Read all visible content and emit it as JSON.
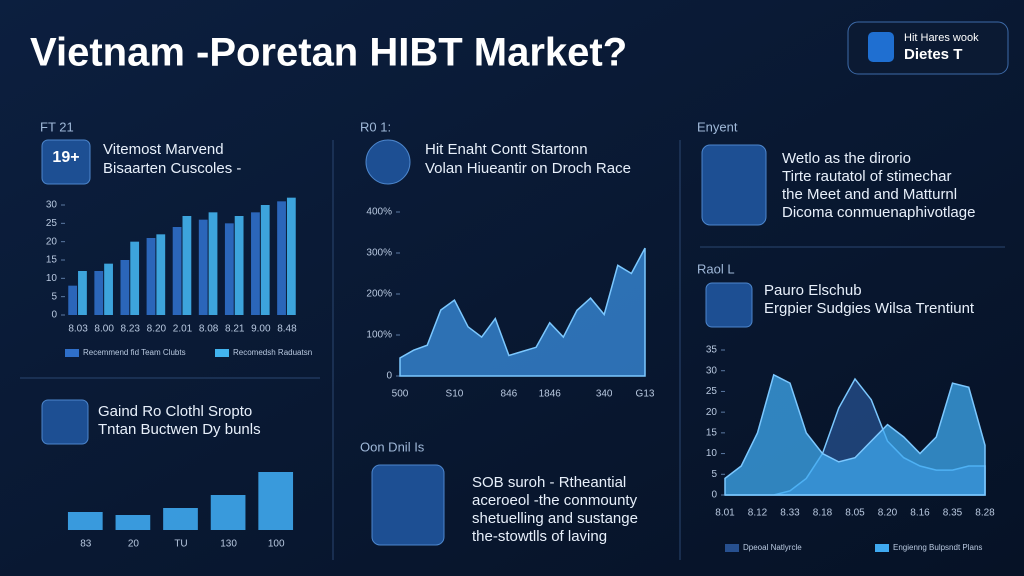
{
  "header": {
    "title": "Vietnam -Poretan HIBT Market?",
    "logo_line1": "Hit Hares wook",
    "logo_line2": "Dietes T"
  },
  "panels": [
    {
      "tag": "FT 21",
      "icon": "19+",
      "title": "Vitemost Marvend",
      "subtitle": "Bisaarten Cuscoles -"
    },
    {
      "tag": "R0 1:",
      "title": "Hit Enaht Contt Startonn",
      "subtitle": "Volan Hiueantir on Droch Race"
    },
    {
      "tag": "Enyent",
      "lines": [
        "Wetlo as the dirorio",
        "Tirte rautatol of stimechar",
        "the Meet and and Matturnl",
        "Dicoma conmuenaphivotlage"
      ]
    },
    {
      "tag": "Raol L",
      "title": "Pauro Elschub",
      "subtitle": "Ergpier Sudgies Wilsa Trentiunt"
    },
    {
      "title": "Gaind Ro Clothl Sropto",
      "subtitle": "Tntan Buctwen Dy bunls"
    },
    {
      "tag": "Oon Dnil Is",
      "lines": [
        "SOB suroh - Rtheantial",
        "aceroeol -the conmounty",
        "shetuelling and sustange",
        "the-stowtlls of laving"
      ]
    }
  ],
  "chart_data": [
    {
      "type": "bar",
      "categories": [
        "8.03",
        "8.00",
        "8.23",
        "8.20",
        "2.01",
        "8.08",
        "8.21",
        "9.00",
        "8.48"
      ],
      "series": [
        {
          "name": "Recemmend fid Team Clubts",
          "color": "#2f6fc9",
          "values": [
            8,
            12,
            15,
            21,
            24,
            26,
            25,
            28,
            31
          ]
        },
        {
          "name": "Recomedsh Raduatsn",
          "color": "#42b4ee",
          "values": [
            12,
            14,
            20,
            22,
            27,
            28,
            27,
            30,
            32
          ]
        }
      ],
      "ylim": [
        0,
        30
      ],
      "yticks": [
        0,
        5,
        10,
        15,
        20,
        25,
        30
      ]
    },
    {
      "type": "area",
      "color": "#3a8fe0",
      "categories": [
        "500",
        null,
        null,
        null,
        "S10",
        null,
        null,
        null,
        "846",
        null,
        null,
        "1846",
        null,
        null,
        null,
        "340",
        null,
        null,
        "G13"
      ],
      "values": [
        44,
        63,
        75,
        161,
        185,
        120,
        95,
        140,
        50,
        60,
        70,
        130,
        95,
        160,
        190,
        150,
        270,
        250,
        312
      ],
      "ylim": [
        0,
        400
      ],
      "yticks": [
        0,
        {
          "value": 100,
          "label": "100%"
        },
        {
          "value": 200,
          "label": "200%"
        },
        {
          "value": 300,
          "label": "300%"
        },
        {
          "value": 400,
          "label": "400%"
        }
      ]
    },
    {
      "type": "area",
      "categories": [
        "8.01",
        null,
        "8.12",
        null,
        "8.33",
        null,
        "8.18",
        null,
        "8.05",
        null,
        "8.20",
        null,
        "8.16",
        null,
        "8.35",
        null,
        "8.28"
      ],
      "series": [
        {
          "name": "Dpeoal Natlyrcle",
          "color": "#27508f",
          "values": [
            0,
            0,
            0,
            0,
            1,
            4,
            10,
            21,
            28,
            23,
            13,
            9,
            7,
            6,
            6,
            7,
            7
          ]
        },
        {
          "name": "Engienng Bulpsndt Plans",
          "color": "#3fa9f0",
          "values": [
            4,
            7,
            15,
            29,
            27,
            15,
            10,
            8,
            9,
            13,
            17,
            14,
            10,
            14,
            27,
            26,
            12
          ]
        }
      ],
      "ylim": [
        0,
        35
      ],
      "yticks": [
        0,
        5,
        10,
        15,
        20,
        25,
        30,
        35
      ]
    },
    {
      "type": "bar",
      "color": "#3fa9f0",
      "categories": [
        "83",
        "20",
        "TU",
        "130",
        "100"
      ],
      "values": [
        18,
        15,
        22,
        35,
        58
      ]
    }
  ]
}
